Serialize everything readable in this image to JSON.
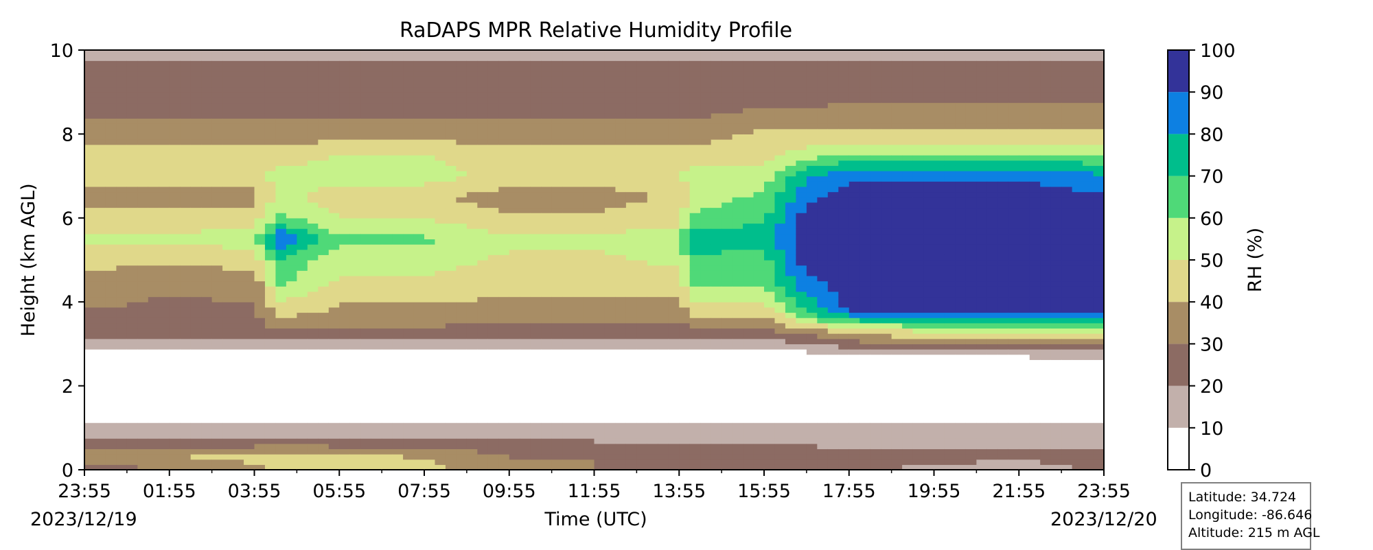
{
  "chart_data": {
    "type": "heatmap",
    "title": "RaDAPS MPR Relative Humidity Profile",
    "xlabel": "Time (UTC)",
    "ylabel": "Height (km AGL)",
    "x_ticks": [
      "23:55",
      "01:55",
      "03:55",
      "05:55",
      "07:55",
      "09:55",
      "11:55",
      "13:55",
      "15:55",
      "17:55",
      "19:55",
      "21:55",
      "23:55"
    ],
    "x_range_hours": [
      0,
      24
    ],
    "date_start": "2023/12/19",
    "date_end": "2023/12/20",
    "ylim": [
      0,
      10
    ],
    "y_ticks": [
      0,
      2,
      4,
      6,
      8,
      10
    ],
    "colorbar": {
      "label": "RH (%)",
      "levels": [
        0,
        10,
        20,
        30,
        40,
        50,
        60,
        70,
        80,
        90,
        100
      ],
      "colors": [
        "#ffffff",
        "#c2b0ab",
        "#8c6b63",
        "#a88d65",
        "#e0d88a",
        "#c6f28a",
        "#4fd978",
        "#00be8c",
        "#0d80e2",
        "#333399"
      ]
    },
    "rh_profile": {
      "times_hours": [
        0,
        2,
        4,
        4.6,
        6,
        8,
        10,
        12,
        14,
        14.3,
        16,
        17,
        18,
        20,
        22,
        24
      ],
      "heights_km": [
        0,
        0.3,
        0.6,
        0.9,
        1.1,
        2.0,
        2.7,
        3.0,
        3.3,
        3.8,
        4.5,
        5.0,
        5.5,
        6.0,
        6.5,
        7.0,
        7.5,
        8.0,
        8.5,
        9.0,
        9.5,
        10.0
      ],
      "rh_percent": [
        [
          25,
          35,
          25,
          15,
          10,
          2,
          5,
          15,
          25,
          30,
          35,
          45,
          52,
          45,
          35,
          45,
          45,
          35,
          28,
          25,
          22,
          18
        ],
        [
          30,
          40,
          25,
          15,
          10,
          2,
          5,
          15,
          25,
          28,
          32,
          42,
          52,
          45,
          35,
          45,
          45,
          35,
          28,
          25,
          22,
          18
        ],
        [
          38,
          42,
          28,
          15,
          10,
          2,
          5,
          15,
          25,
          28,
          35,
          45,
          55,
          45,
          35,
          45,
          45,
          35,
          28,
          25,
          22,
          18
        ],
        [
          42,
          45,
          30,
          15,
          10,
          2,
          5,
          15,
          28,
          45,
          62,
          68,
          92,
          62,
          55,
          55,
          45,
          35,
          28,
          25,
          22,
          18
        ],
        [
          45,
          42,
          28,
          15,
          10,
          2,
          5,
          15,
          28,
          38,
          48,
          55,
          62,
          50,
          42,
          55,
          50,
          35,
          28,
          25,
          22,
          18
        ],
        [
          42,
          40,
          28,
          15,
          10,
          2,
          5,
          15,
          28,
          38,
          48,
          55,
          62,
          50,
          42,
          55,
          50,
          35,
          28,
          25,
          22,
          18
        ],
        [
          35,
          30,
          25,
          15,
          10,
          2,
          5,
          15,
          25,
          35,
          45,
          48,
          52,
          42,
          35,
          45,
          45,
          35,
          28,
          25,
          22,
          18
        ],
        [
          30,
          30,
          22,
          15,
          10,
          2,
          5,
          15,
          25,
          35,
          45,
          48,
          52,
          42,
          35,
          45,
          45,
          35,
          28,
          25,
          22,
          18
        ],
        [
          25,
          30,
          20,
          15,
          10,
          2,
          5,
          15,
          25,
          35,
          45,
          52,
          58,
          45,
          42,
          48,
          45,
          35,
          28,
          25,
          22,
          18
        ],
        [
          25,
          28,
          20,
          15,
          10,
          2,
          5,
          15,
          28,
          45,
          62,
          66,
          78,
          62,
          55,
          55,
          45,
          35,
          28,
          25,
          22,
          18
        ],
        [
          25,
          25,
          20,
          15,
          10,
          2,
          5,
          15,
          28,
          45,
          62,
          66,
          75,
          68,
          62,
          55,
          45,
          42,
          32,
          25,
          22,
          18
        ],
        [
          22,
          25,
          20,
          15,
          10,
          2,
          5,
          18,
          35,
          72,
          88,
          96,
          96,
          96,
          88,
          78,
          55,
          42,
          32,
          25,
          22,
          18
        ],
        [
          22,
          22,
          18,
          15,
          10,
          2,
          5,
          25,
          45,
          92,
          96,
          96,
          96,
          96,
          96,
          88,
          62,
          42,
          32,
          28,
          22,
          18
        ],
        [
          18,
          22,
          18,
          15,
          10,
          2,
          8,
          30,
          50,
          92,
          96,
          96,
          96,
          96,
          96,
          88,
          62,
          42,
          32,
          28,
          22,
          18
        ],
        [
          15,
          22,
          18,
          15,
          10,
          2,
          10,
          32,
          55,
          94,
          96,
          96,
          96,
          96,
          96,
          88,
          62,
          42,
          32,
          28,
          22,
          18
        ],
        [
          22,
          22,
          18,
          15,
          10,
          2,
          12,
          32,
          55,
          92,
          96,
          96,
          96,
          96,
          92,
          82,
          62,
          42,
          32,
          28,
          22,
          18
        ]
      ]
    }
  },
  "info_box": {
    "latitude": "Latitude: 34.724",
    "longitude": "Longitude: -86.646",
    "altitude": "Altitude: 215 m AGL"
  }
}
